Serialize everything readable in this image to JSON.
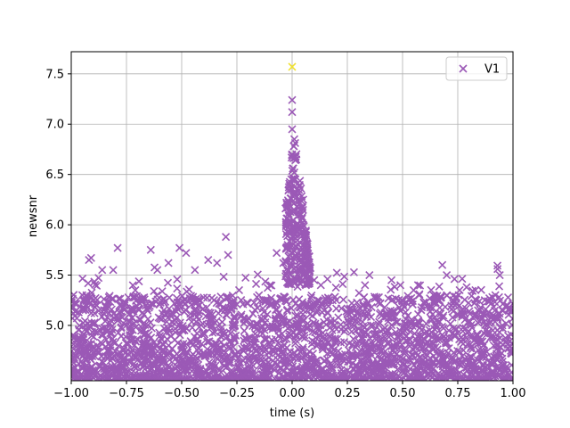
{
  "chart_data": {
    "type": "scatter",
    "title": "",
    "xlabel": "time (s)",
    "ylabel": "newsnr",
    "xlim": [
      -1.0,
      1.0
    ],
    "ylim": [
      4.45,
      7.72
    ],
    "xticks": [
      -1.0,
      -0.75,
      -0.5,
      -0.25,
      0.0,
      0.25,
      0.5,
      0.75,
      1.0
    ],
    "xtick_labels": [
      "−1.00",
      "−0.75",
      "−0.50",
      "−0.25",
      "0.00",
      "0.25",
      "0.50",
      "0.75",
      "1.00"
    ],
    "yticks": [
      5.0,
      5.5,
      6.0,
      6.5,
      7.0,
      7.5
    ],
    "ytick_labels": [
      "5.0",
      "5.5",
      "6.0",
      "6.5",
      "7.0",
      "7.5"
    ],
    "grid": true,
    "legend_position": "top-right",
    "marker": "x",
    "series": [
      {
        "name": "V1",
        "color": "#9b59b6",
        "points": [
          [
            -0.91,
            5.67
          ],
          [
            -0.92,
            5.65
          ],
          [
            -0.86,
            5.55
          ],
          [
            -0.79,
            5.77
          ],
          [
            -0.81,
            5.55
          ],
          [
            -0.71,
            5.35
          ],
          [
            -0.64,
            5.75
          ],
          [
            -0.61,
            5.55
          ],
          [
            -0.56,
            5.62
          ],
          [
            -0.51,
            5.77
          ],
          [
            -0.48,
            5.72
          ],
          [
            -0.44,
            5.55
          ],
          [
            -0.38,
            5.65
          ],
          [
            -0.34,
            5.62
          ],
          [
            -0.3,
            5.88
          ],
          [
            -0.29,
            5.7
          ],
          [
            -0.24,
            5.35
          ],
          [
            -0.15,
            5.3
          ],
          [
            -0.1,
            5.4
          ],
          [
            -0.07,
            5.72
          ],
          [
            -0.04,
            5.62
          ],
          [
            -0.02,
            5.8
          ],
          [
            0.0,
            7.24
          ],
          [
            0.0,
            7.12
          ],
          [
            0.0,
            6.95
          ],
          [
            0.01,
            6.85
          ],
          [
            0.0,
            6.7
          ],
          [
            0.01,
            6.52
          ],
          [
            0.02,
            6.35
          ],
          [
            0.03,
            6.2
          ],
          [
            0.04,
            6.1
          ],
          [
            0.05,
            6.0
          ],
          [
            0.06,
            5.9
          ],
          [
            0.04,
            6.36
          ],
          [
            0.05,
            6.25
          ],
          [
            0.07,
            5.7
          ],
          [
            0.1,
            5.45
          ],
          [
            0.13,
            5.4
          ],
          [
            0.16,
            5.46
          ],
          [
            0.2,
            5.25
          ],
          [
            0.27,
            5.22
          ],
          [
            0.33,
            5.4
          ],
          [
            0.35,
            5.5
          ],
          [
            0.4,
            5.22
          ],
          [
            0.45,
            5.45
          ],
          [
            0.49,
            5.4
          ],
          [
            0.55,
            5.35
          ],
          [
            0.57,
            5.4
          ],
          [
            0.64,
            5.3
          ],
          [
            0.68,
            5.6
          ],
          [
            0.7,
            5.5
          ],
          [
            0.73,
            5.25
          ],
          [
            0.79,
            5.38
          ],
          [
            0.83,
            5.35
          ],
          [
            0.93,
            5.56
          ],
          [
            0.94,
            5.5
          ],
          [
            0.98,
            5.15
          ],
          [
            -0.99,
            5.18
          ],
          [
            -0.95,
            5.3
          ],
          [
            0.92,
            5.3
          ]
        ]
      }
    ],
    "highlight_points": [
      {
        "x": 0.0,
        "y": 7.57,
        "color": "#f0e130"
      }
    ]
  }
}
